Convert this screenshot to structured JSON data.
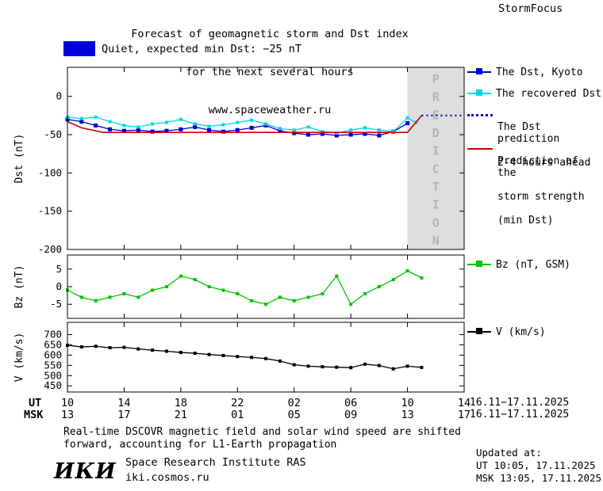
{
  "header": {
    "title_line1": "Forecast of geomagnetic storm and Dst index",
    "title_line2": "for the next several hours",
    "title_line3": "www.spaceweather.ru",
    "brand": "StormFocus"
  },
  "status": {
    "label": "Quiet, expected min Dst: −25 nT"
  },
  "legend": {
    "dst_kyoto": "The Dst, Kyoto",
    "recovered": "The recovered Dst",
    "prediction_line1": "The Dst prediction",
    "prediction_line2": "2-4 hours ahead",
    "storm_line1": "Prediction of the",
    "storm_line2": "storm strength",
    "storm_line3": "(min Dst)",
    "bz": "Bz (nT, GSM)",
    "v": "V (km/s)"
  },
  "axis": {
    "ut_label": "UT",
    "msk_label": "MSK",
    "ut_ticks": [
      "10",
      "14",
      "18",
      "22",
      "02",
      "06",
      "10",
      "14"
    ],
    "msk_ticks": [
      "13",
      "17",
      "21",
      "01",
      "05",
      "09",
      "13",
      "17"
    ],
    "date_range_ut": "16.11−17.11.2025",
    "date_range_msk": "16.11−17.11.2025"
  },
  "footer": {
    "note_line1": "Real-time DSCOVR magnetic field and solar wind speed are shifted",
    "note_line2": "forward, accounting for L1-Earth propagation",
    "updated_label": "Updated at:",
    "updated_ut": "UT 10:05, 17.11.2025",
    "updated_msk": "MSK 13:05, 17.11.2025",
    "logo": "ИКИ",
    "institute": "Space Research Institute RAS",
    "site": "iki.cosmos.ru"
  },
  "colors": {
    "dst_kyoto": "#0000cc",
    "recovered": "#00d8e0",
    "prediction": "#0000cc",
    "storm": "#cc0000",
    "bz": "#00c400",
    "v": "#000000",
    "quiet_swatch": "#0000dd",
    "prediction_bg": "#dedede",
    "prediction_text": "#b4b4b4"
  },
  "chart_data": [
    {
      "type": "line",
      "panel": "dst",
      "ylabel": "Dst (nT)",
      "x_unit": "hours from 10:00 UT 16.11.2025",
      "xlim": [
        0,
        28
      ],
      "ylim": [
        -200,
        38
      ],
      "yticks": [
        0,
        -50,
        -100,
        -150,
        -200
      ],
      "ytick_labels": [
        "0",
        "-50",
        "-100",
        "-150",
        "-200"
      ],
      "xticks": [
        0,
        4,
        8,
        12,
        16,
        20,
        24,
        28
      ],
      "prediction_region": [
        24,
        28
      ],
      "prediction_label": "PREDICTION",
      "series": [
        {
          "name": "The Dst, Kyoto",
          "color": "#0000cc",
          "marker": true,
          "msize": 5,
          "x": [
            0,
            1,
            2,
            3,
            4,
            5,
            6,
            7,
            8,
            9,
            10,
            11,
            12,
            13,
            14,
            15,
            16,
            17,
            18,
            19,
            20,
            21,
            22,
            23,
            24
          ],
          "values": [
            -30,
            -33,
            -38,
            -43,
            -45,
            -44,
            -46,
            -45,
            -43,
            -40,
            -44,
            -46,
            -44,
            -41,
            -38,
            -45,
            -48,
            -50,
            -49,
            -51,
            -50,
            -49,
            -51,
            -46,
            -35
          ]
        },
        {
          "name": "The recovered Dst",
          "color": "#00d8e0",
          "marker": true,
          "msize": 4,
          "x": [
            0,
            1,
            2,
            3,
            4,
            5,
            6,
            7,
            8,
            9,
            10,
            11,
            12,
            13,
            14,
            15,
            16,
            17,
            18,
            19,
            20,
            21,
            22,
            23,
            24,
            24.6
          ],
          "values": [
            -27,
            -29,
            -27,
            -33,
            -38,
            -40,
            -36,
            -34,
            -30,
            -36,
            -39,
            -37,
            -34,
            -31,
            -36,
            -42,
            -44,
            -40,
            -46,
            -48,
            -44,
            -41,
            -44,
            -46,
            -28,
            -34
          ]
        },
        {
          "name": "Prediction of the storm strength (min Dst)",
          "color": "#cc0000",
          "width": 1.6,
          "x": [
            0,
            1,
            2.5,
            24,
            25
          ],
          "values": [
            -33,
            -41,
            -47,
            -47,
            -25
          ]
        },
        {
          "name": "The Dst prediction 2-4 hours ahead",
          "color": "#0000cc",
          "dash": "2,4",
          "width": 2.2,
          "x": [
            25,
            28
          ],
          "values": [
            -25,
            -25
          ]
        }
      ]
    },
    {
      "type": "line",
      "panel": "bz",
      "ylabel": "Bz (nT)",
      "xlim": [
        0,
        28
      ],
      "ylim": [
        -9,
        9
      ],
      "yticks": [
        5,
        0,
        -5
      ],
      "ytick_labels": [
        "5",
        "0",
        "-5"
      ],
      "xticks": [
        0,
        4,
        8,
        12,
        16,
        20,
        24,
        28
      ],
      "series": [
        {
          "name": "Bz (nT, GSM)",
          "color": "#00c400",
          "marker": true,
          "msize": 4,
          "x": [
            0,
            1,
            2,
            3,
            4,
            5,
            6,
            7,
            8,
            9,
            10,
            11,
            12,
            13,
            14,
            15,
            16,
            17,
            18,
            19,
            20,
            21,
            22,
            23,
            24,
            25
          ],
          "values": [
            -1,
            -3,
            -4,
            -3,
            -2,
            -3,
            -1,
            0,
            3,
            2,
            0,
            -1,
            -2,
            -4,
            -5,
            -3,
            -4,
            -3,
            -2,
            3,
            -5,
            -2,
            0,
            2,
            4.5,
            2.5
          ]
        }
      ]
    },
    {
      "type": "line",
      "panel": "v",
      "ylabel": "V (km/s)",
      "xlim": [
        0,
        28
      ],
      "ylim": [
        420,
        760
      ],
      "yticks": [
        700,
        650,
        600,
        550,
        500,
        450
      ],
      "ytick_labels": [
        "700",
        "650",
        "600",
        "550",
        "500",
        "450"
      ],
      "xticks": [
        0,
        4,
        8,
        12,
        16,
        20,
        24,
        28
      ],
      "series": [
        {
          "name": "V (km/s)",
          "color": "#000000",
          "marker": true,
          "msize": 4,
          "x": [
            0,
            1,
            2,
            3,
            4,
            5,
            6,
            7,
            8,
            9,
            10,
            11,
            12,
            13,
            14,
            15,
            16,
            17,
            18,
            19,
            20,
            21,
            22,
            23,
            24,
            25
          ],
          "values": [
            648,
            640,
            643,
            636,
            638,
            630,
            624,
            619,
            613,
            609,
            603,
            598,
            593,
            589,
            583,
            571,
            553,
            546,
            543,
            541,
            539,
            556,
            549,
            533,
            546,
            540
          ]
        }
      ]
    }
  ]
}
